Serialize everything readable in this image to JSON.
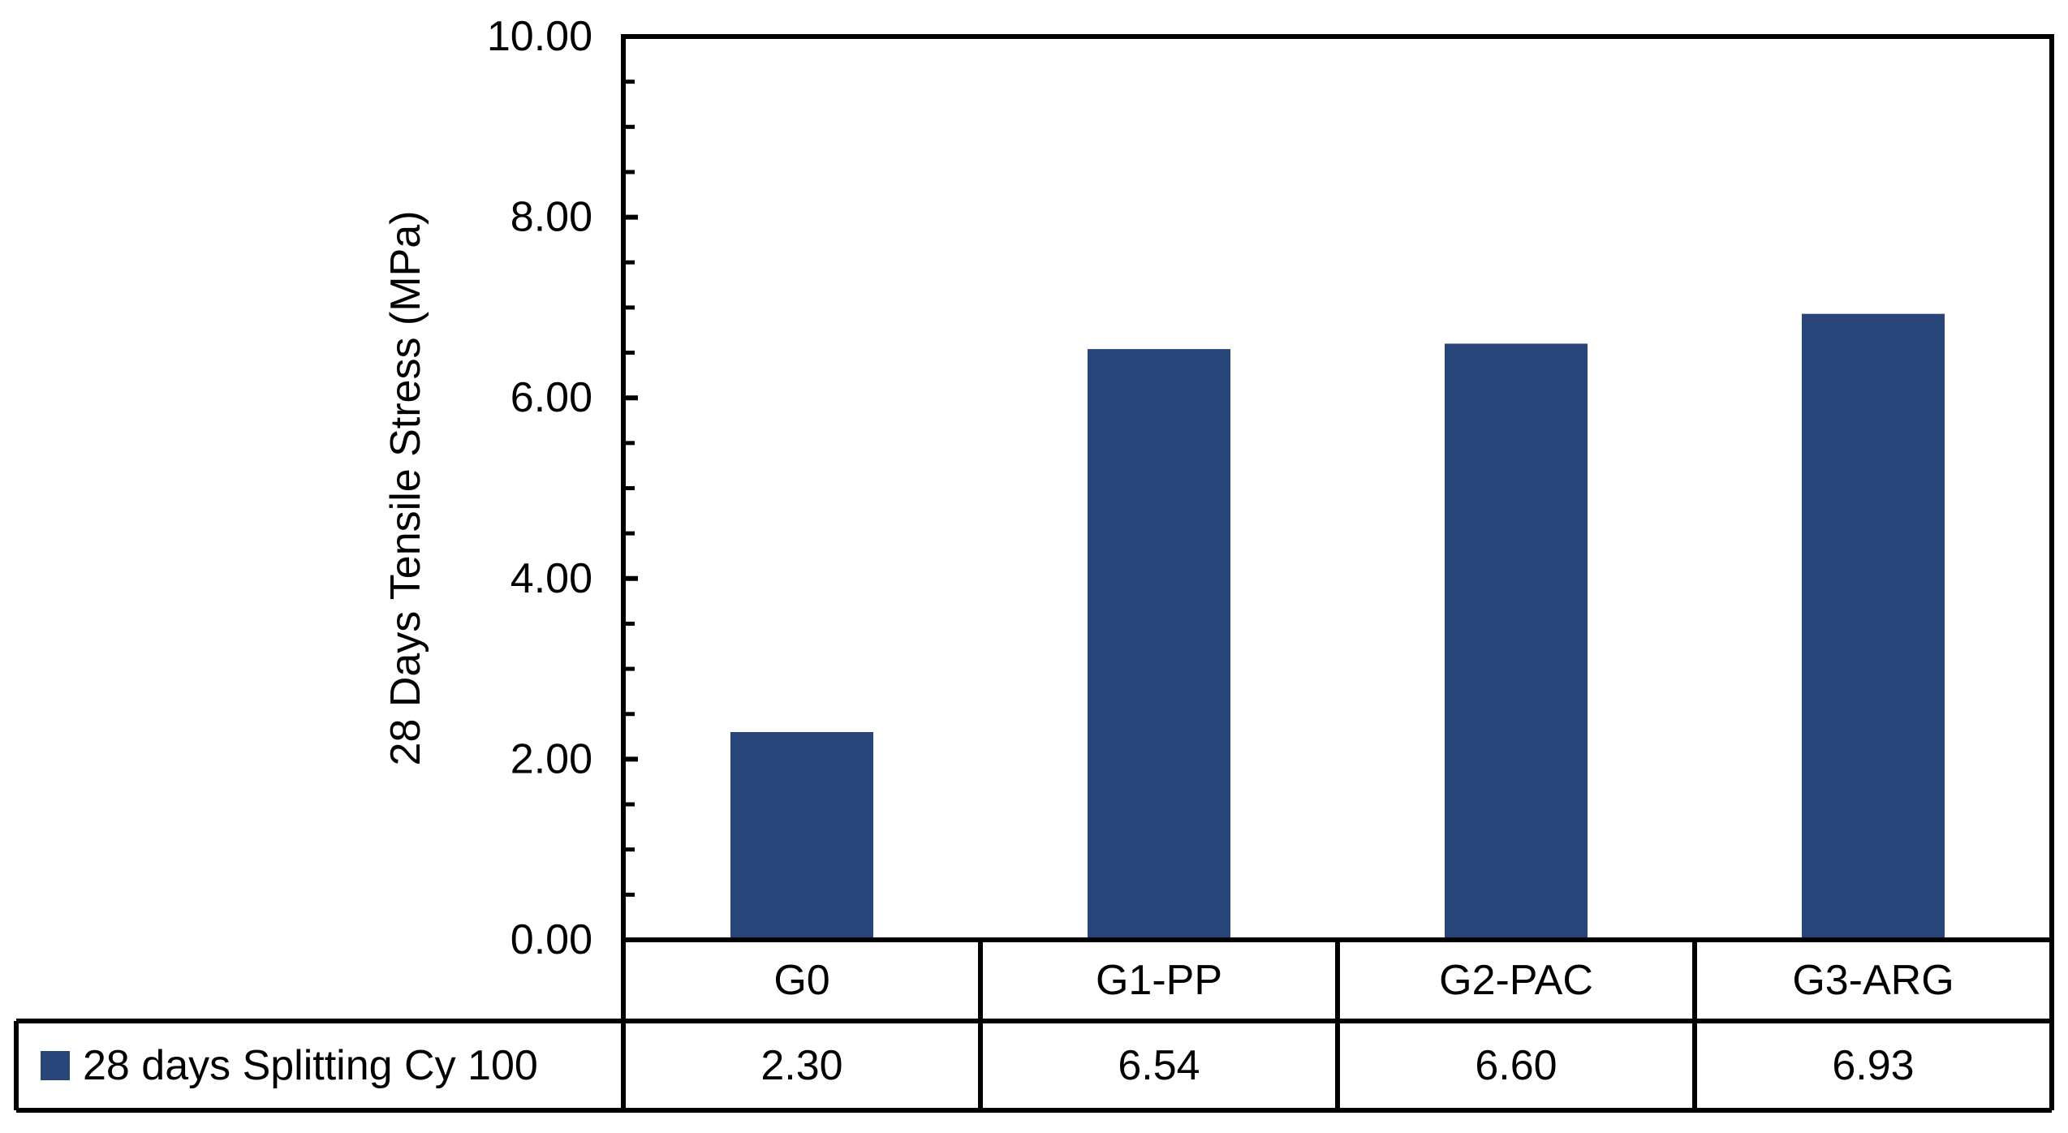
{
  "chart_data": {
    "type": "bar",
    "title": "",
    "xlabel": "",
    "ylabel": "28 Days Tensile Stress (MPa)",
    "ylim": [
      0,
      10
    ],
    "ytick_step": 2,
    "yminor_step": 0.5,
    "ytick_labels": [
      "0.00",
      "2.00",
      "4.00",
      "6.00",
      "8.00",
      "10.00"
    ],
    "categories": [
      "G0",
      "G1-PP",
      "G2-PAC",
      "G3-ARG"
    ],
    "series": [
      {
        "name": "28 days Splitting Cy 100",
        "values": [
          2.3,
          6.54,
          6.6,
          6.93
        ],
        "labels": [
          "2.30",
          "6.54",
          "6.60",
          "6.93"
        ]
      }
    ],
    "data_table": true,
    "legend": "data-table-left",
    "grid": false,
    "colors": {
      "bar": "#274579",
      "axis": "#000000"
    }
  }
}
